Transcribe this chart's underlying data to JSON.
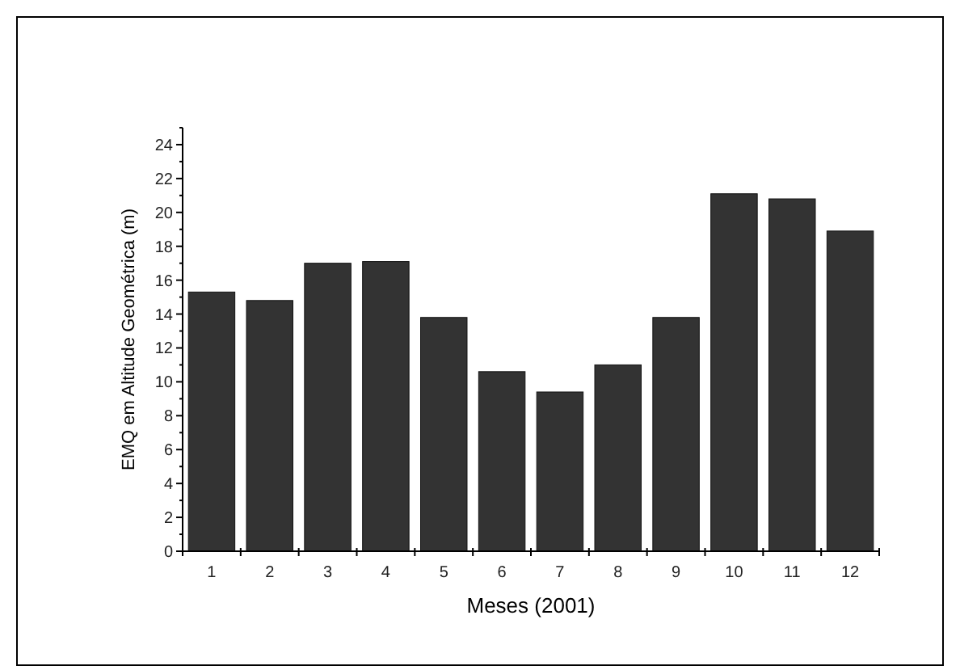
{
  "chart_data": {
    "type": "bar",
    "xlabel": "Meses (2001)",
    "ylabel": "EMQ em Altitude Geométrica (m)",
    "categories": [
      "1",
      "2",
      "3",
      "4",
      "5",
      "6",
      "7",
      "8",
      "9",
      "10",
      "11",
      "12"
    ],
    "values": [
      15.3,
      14.8,
      17.0,
      17.1,
      13.8,
      10.6,
      9.4,
      11.0,
      13.8,
      21.1,
      20.8,
      18.9
    ],
    "color": "#333333",
    "ylim": [
      0,
      25
    ],
    "yticks": [
      0,
      2,
      4,
      6,
      8,
      10,
      12,
      14,
      16,
      18,
      20,
      22,
      24
    ],
    "grid": false
  }
}
